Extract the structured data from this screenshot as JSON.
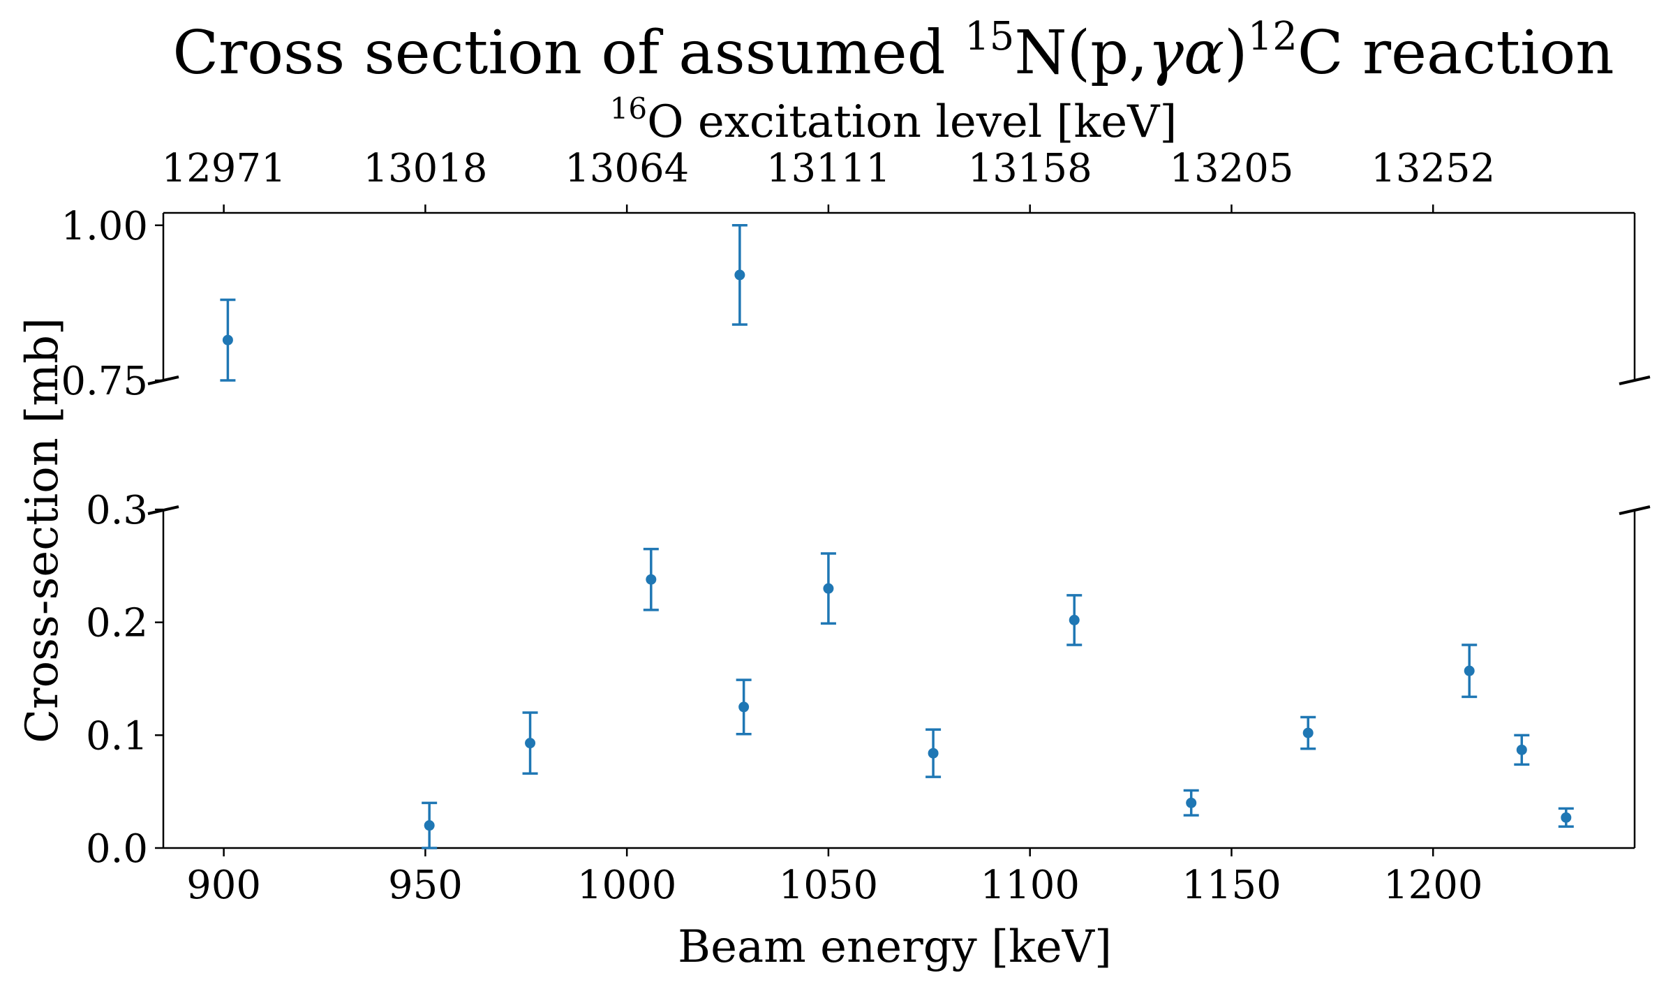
{
  "chart_data": {
    "type": "scatter",
    "title_parts": {
      "prefix": "Cross section of assumed ",
      "sup1": "15",
      "mid1": "N(p,",
      "gamma": "γ",
      "alpha": "α",
      "mid2": ")",
      "sup2": "12",
      "suffix": "C reaction"
    },
    "top_axis_label": {
      "sup": "16",
      "text": "O excitation level [keV]"
    },
    "top_axis_ticks": [
      "12971",
      "13018",
      "13064",
      "13111",
      "13158",
      "13205",
      "13252"
    ],
    "xlabel": "Beam energy [keV]",
    "ylabel": "Cross-section [mb]",
    "xlim": [
      885,
      1250
    ],
    "x_ticks": [
      900,
      950,
      1000,
      1050,
      1100,
      1150,
      1200
    ],
    "upper_panel": {
      "ylim": [
        0.75,
        1.02
      ],
      "y_ticks": [
        "0.75",
        "1.00"
      ],
      "y_tick_values": [
        0.75,
        1.0
      ]
    },
    "lower_panel": {
      "ylim": [
        0.0,
        0.3
      ],
      "y_ticks": [
        "0.0",
        "0.1",
        "0.2",
        "0.3"
      ],
      "y_tick_values": [
        0.0,
        0.1,
        0.2,
        0.3
      ]
    },
    "series": [
      {
        "name": "cross-section",
        "color": "#1f77b4",
        "points": [
          {
            "x": 901,
            "y": 0.815,
            "err": 0.065
          },
          {
            "x": 1028,
            "y": 0.92,
            "err": 0.08
          },
          {
            "x": 951,
            "y": 0.02,
            "err": 0.02
          },
          {
            "x": 976,
            "y": 0.093,
            "err": 0.027
          },
          {
            "x": 1006,
            "y": 0.238,
            "err": 0.027
          },
          {
            "x": 1029,
            "y": 0.125,
            "err": 0.024
          },
          {
            "x": 1050,
            "y": 0.23,
            "err": 0.031
          },
          {
            "x": 1076,
            "y": 0.084,
            "err": 0.021
          },
          {
            "x": 1111,
            "y": 0.202,
            "err": 0.022
          },
          {
            "x": 1140,
            "y": 0.04,
            "err": 0.011
          },
          {
            "x": 1169,
            "y": 0.102,
            "err": 0.014
          },
          {
            "x": 1209,
            "y": 0.157,
            "err": 0.023
          },
          {
            "x": 1222,
            "y": 0.087,
            "err": 0.013
          },
          {
            "x": 1233,
            "y": 0.027,
            "err": 0.008
          }
        ]
      }
    ]
  }
}
